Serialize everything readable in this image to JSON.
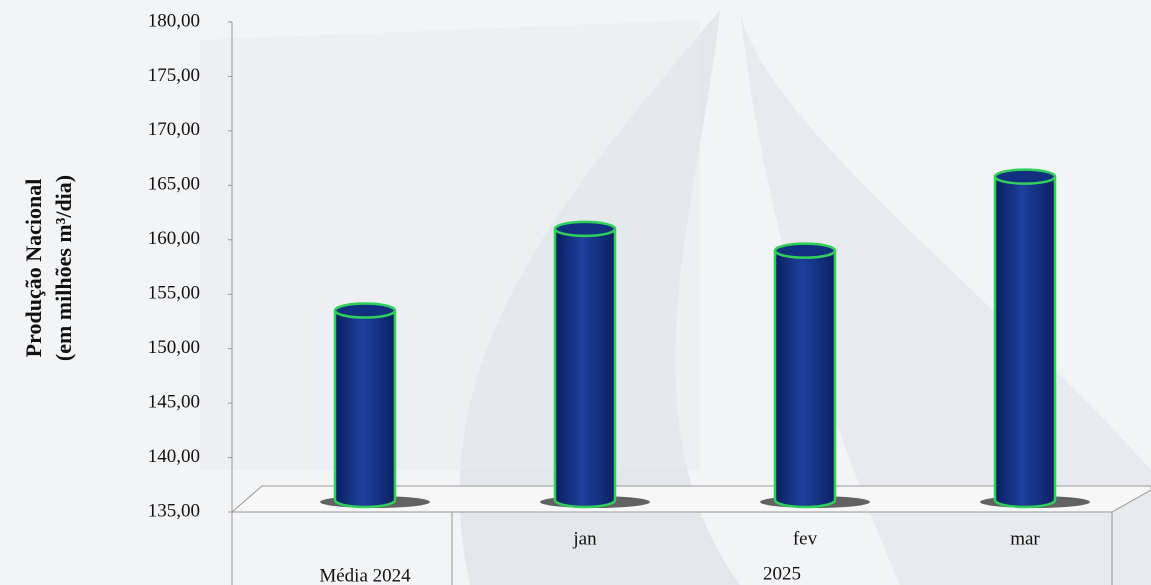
{
  "chart_data": {
    "type": "bar",
    "ylabel": [
      "Produção Nacional",
      "(em milhões m³/dia)"
    ],
    "categories": [
      "Média 2024",
      "jan",
      "fev",
      "mar"
    ],
    "x_group_label": "2025",
    "values": [
      153.5,
      161.0,
      159.0,
      165.8
    ],
    "color": "#12307f",
    "edge_color": "#2fd05a",
    "ylim": [
      135,
      180
    ],
    "yticks": [
      {
        "value": 135,
        "label": "135,00"
      },
      {
        "value": 140,
        "label": "140,00"
      },
      {
        "value": 145,
        "label": "145,00"
      },
      {
        "value": 150,
        "label": "150,00"
      },
      {
        "value": 155,
        "label": "155,00"
      },
      {
        "value": 160,
        "label": "160,00"
      },
      {
        "value": 165,
        "label": "165,00"
      },
      {
        "value": 170,
        "label": "170,00"
      },
      {
        "value": 175,
        "label": "175,00"
      },
      {
        "value": 180,
        "label": "180,00"
      }
    ],
    "grid": false
  }
}
